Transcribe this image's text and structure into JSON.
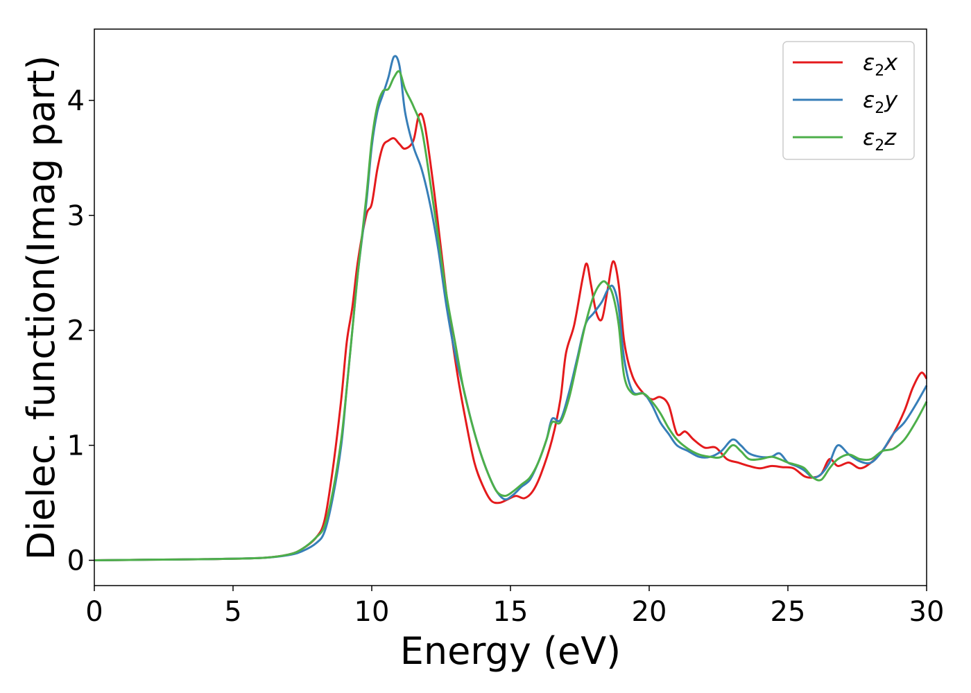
{
  "chart_data": {
    "type": "line",
    "title": "",
    "xlabel": "Energy (eV)",
    "ylabel": "Dielec. function(Imag part)",
    "xlim": [
      0,
      30
    ],
    "ylim": [
      -0.22,
      4.62
    ],
    "xticks": [
      0,
      5,
      10,
      15,
      20,
      25,
      30
    ],
    "yticks": [
      0,
      1,
      2,
      3,
      4
    ],
    "grid": false,
    "legend_position": "top-right",
    "series": [
      {
        "name_base": "ε",
        "name_sub": "2",
        "name_suffix": "x",
        "color": "#e41a1c",
        "x": [
          0,
          2,
          4,
          6,
          7,
          7.5,
          8,
          8.3,
          8.6,
          8.9,
          9.1,
          9.3,
          9.5,
          9.8,
          10.0,
          10.2,
          10.4,
          10.6,
          10.8,
          11.0,
          11.2,
          11.5,
          11.7,
          11.9,
          12.2,
          12.5,
          12.8,
          13.1,
          13.4,
          13.7,
          14.0,
          14.3,
          14.6,
          14.9,
          15.2,
          15.5,
          15.8,
          16.1,
          16.5,
          16.8,
          17.0,
          17.3,
          17.6,
          17.75,
          17.9,
          18.1,
          18.3,
          18.5,
          18.7,
          18.9,
          19.1,
          19.4,
          19.8,
          20.1,
          20.4,
          20.7,
          21.0,
          21.3,
          21.6,
          22.0,
          22.4,
          22.8,
          23.2,
          23.6,
          24.0,
          24.4,
          24.8,
          25.2,
          25.6,
          25.9,
          26.2,
          26.5,
          26.8,
          27.2,
          27.6,
          28.0,
          28.4,
          28.8,
          29.2,
          29.5,
          29.8,
          30.0
        ],
        "y": [
          0,
          0.005,
          0.01,
          0.02,
          0.05,
          0.1,
          0.2,
          0.35,
          0.8,
          1.4,
          1.9,
          2.2,
          2.6,
          3.0,
          3.1,
          3.4,
          3.6,
          3.65,
          3.67,
          3.62,
          3.58,
          3.65,
          3.87,
          3.8,
          3.3,
          2.7,
          2.1,
          1.6,
          1.2,
          0.85,
          0.65,
          0.52,
          0.5,
          0.53,
          0.56,
          0.54,
          0.6,
          0.75,
          1.05,
          1.4,
          1.8,
          2.05,
          2.45,
          2.58,
          2.4,
          2.15,
          2.1,
          2.35,
          2.6,
          2.4,
          1.9,
          1.6,
          1.45,
          1.4,
          1.42,
          1.35,
          1.1,
          1.12,
          1.05,
          0.98,
          0.98,
          0.88,
          0.85,
          0.82,
          0.8,
          0.82,
          0.81,
          0.8,
          0.73,
          0.72,
          0.75,
          0.88,
          0.82,
          0.85,
          0.8,
          0.85,
          0.95,
          1.1,
          1.3,
          1.5,
          1.63,
          1.58
        ]
      },
      {
        "name_base": "ε",
        "name_sub": "2",
        "name_suffix": "y",
        "color": "#377eb8",
        "x": [
          0,
          2,
          4,
          6,
          7,
          7.5,
          8,
          8.3,
          8.6,
          8.9,
          9.1,
          9.3,
          9.5,
          9.8,
          10.0,
          10.2,
          10.4,
          10.6,
          10.8,
          11.0,
          11.2,
          11.5,
          11.8,
          12.1,
          12.4,
          12.7,
          13.0,
          13.3,
          13.6,
          13.9,
          14.2,
          14.5,
          14.8,
          15.1,
          15.4,
          15.7,
          16.0,
          16.3,
          16.5,
          16.8,
          17.1,
          17.4,
          17.7,
          18.0,
          18.3,
          18.5,
          18.7,
          18.9,
          19.1,
          19.4,
          19.8,
          20.1,
          20.4,
          20.7,
          21.0,
          21.4,
          21.8,
          22.2,
          22.6,
          23.0,
          23.3,
          23.6,
          24.0,
          24.4,
          24.7,
          25.0,
          25.3,
          25.6,
          25.9,
          26.2,
          26.5,
          26.8,
          27.2,
          27.6,
          28.0,
          28.4,
          28.8,
          29.2,
          29.6,
          30.0
        ],
        "y": [
          0,
          0.005,
          0.01,
          0.02,
          0.045,
          0.08,
          0.15,
          0.25,
          0.55,
          1.0,
          1.5,
          2.0,
          2.5,
          3.1,
          3.6,
          3.9,
          4.05,
          4.2,
          4.38,
          4.3,
          3.9,
          3.6,
          3.4,
          3.1,
          2.7,
          2.2,
          1.8,
          1.5,
          1.2,
          0.95,
          0.75,
          0.6,
          0.53,
          0.57,
          0.64,
          0.7,
          0.85,
          1.05,
          1.23,
          1.22,
          1.45,
          1.75,
          2.05,
          2.15,
          2.25,
          2.35,
          2.38,
          2.2,
          1.75,
          1.47,
          1.45,
          1.35,
          1.2,
          1.1,
          1.0,
          0.95,
          0.9,
          0.9,
          0.95,
          1.05,
          1.0,
          0.93,
          0.9,
          0.9,
          0.93,
          0.85,
          0.82,
          0.78,
          0.72,
          0.75,
          0.85,
          1.0,
          0.92,
          0.86,
          0.85,
          0.95,
          1.1,
          1.2,
          1.35,
          1.52
        ]
      },
      {
        "name_base": "ε",
        "name_sub": "2",
        "name_suffix": "z",
        "color": "#4daf4a",
        "x": [
          0,
          2,
          4,
          6,
          7,
          7.5,
          8,
          8.3,
          8.6,
          8.9,
          9.1,
          9.3,
          9.5,
          9.8,
          10.0,
          10.2,
          10.4,
          10.6,
          10.8,
          11.0,
          11.2,
          11.5,
          11.8,
          12.1,
          12.4,
          12.7,
          13.0,
          13.3,
          13.6,
          13.9,
          14.2,
          14.5,
          14.8,
          15.1,
          15.4,
          15.7,
          16.0,
          16.3,
          16.5,
          16.8,
          17.1,
          17.4,
          17.7,
          18.0,
          18.3,
          18.5,
          18.7,
          18.9,
          19.1,
          19.4,
          19.8,
          20.1,
          20.4,
          20.7,
          21.0,
          21.4,
          21.8,
          22.2,
          22.6,
          23.0,
          23.3,
          23.6,
          24.0,
          24.4,
          24.7,
          25.0,
          25.3,
          25.6,
          25.9,
          26.2,
          26.5,
          26.8,
          27.2,
          27.6,
          28.0,
          28.4,
          28.8,
          29.2,
          29.6,
          30.0
        ],
        "y": [
          0,
          0.005,
          0.01,
          0.02,
          0.05,
          0.1,
          0.2,
          0.3,
          0.6,
          1.05,
          1.5,
          2.0,
          2.5,
          3.15,
          3.65,
          3.95,
          4.08,
          4.1,
          4.2,
          4.25,
          4.1,
          3.95,
          3.75,
          3.3,
          2.8,
          2.3,
          1.9,
          1.5,
          1.2,
          0.95,
          0.75,
          0.6,
          0.56,
          0.6,
          0.66,
          0.72,
          0.85,
          1.05,
          1.2,
          1.2,
          1.4,
          1.72,
          2.05,
          2.3,
          2.42,
          2.4,
          2.3,
          2.05,
          1.6,
          1.45,
          1.45,
          1.38,
          1.28,
          1.15,
          1.05,
          0.97,
          0.92,
          0.9,
          0.9,
          1.0,
          0.95,
          0.88,
          0.88,
          0.9,
          0.88,
          0.85,
          0.83,
          0.8,
          0.72,
          0.7,
          0.8,
          0.88,
          0.92,
          0.88,
          0.88,
          0.95,
          0.97,
          1.05,
          1.2,
          1.38
        ]
      }
    ]
  }
}
